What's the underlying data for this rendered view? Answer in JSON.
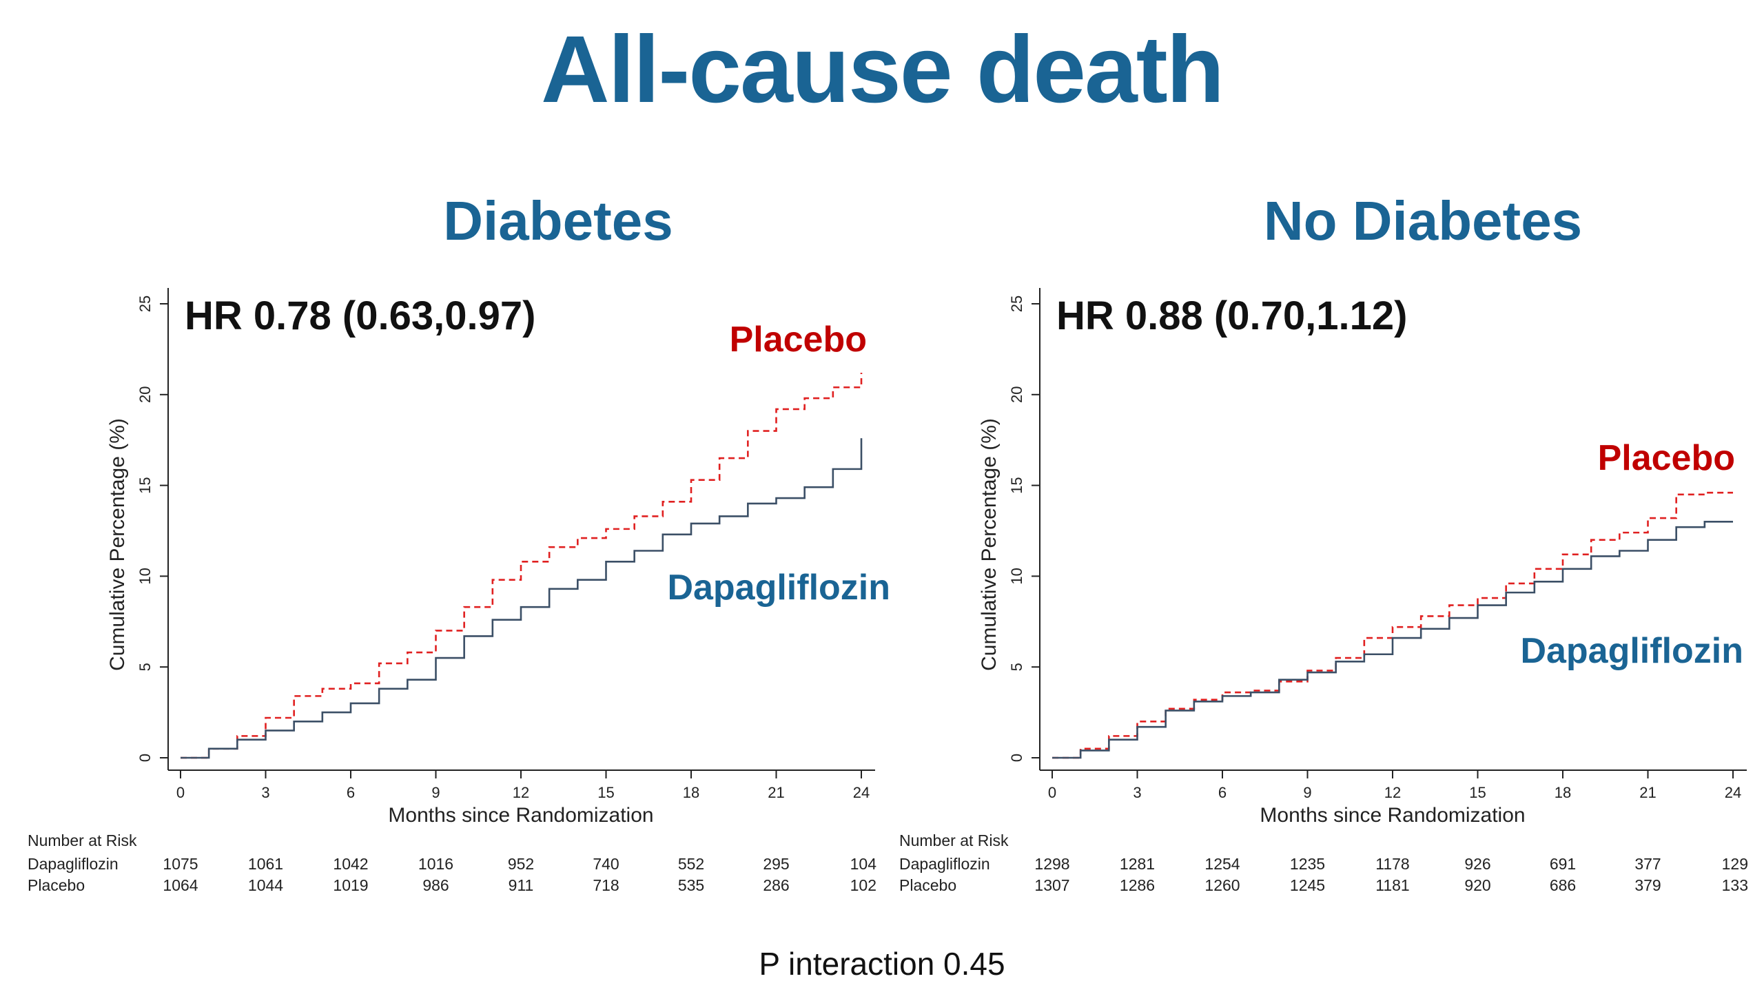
{
  "title": "All-cause death",
  "footnote": "P interaction 0.45",
  "colors": {
    "title": "#1a6494",
    "placebo": "#e02020",
    "dapagliflozin": "#3b4f66",
    "placebo_label": "#c00000",
    "dapagliflozin_label": "#1a6494"
  },
  "chart_data": [
    {
      "type": "line",
      "subtitle": "Diabetes",
      "annotation": "HR 0.78 (0.63,0.97)",
      "xlabel": "Months since Randomization",
      "ylabel": "Cumulative Percentage (%)",
      "xlim": [
        0,
        24
      ],
      "ylim": [
        0,
        25
      ],
      "xticks": [
        0,
        3,
        6,
        9,
        12,
        15,
        18,
        21,
        24
      ],
      "yticks": [
        0,
        5,
        10,
        15,
        20,
        25
      ],
      "grid": false,
      "series": [
        {
          "name": "Placebo",
          "style": "dashed",
          "x": [
            0,
            1,
            2,
            3,
            4,
            5,
            6,
            7,
            8,
            9,
            10,
            11,
            12,
            13,
            14,
            15,
            16,
            17,
            18,
            19,
            20,
            21,
            22,
            23,
            24
          ],
          "y": [
            0,
            0.5,
            1.2,
            2.2,
            3.4,
            3.8,
            4.1,
            5.2,
            5.8,
            7.0,
            8.3,
            9.8,
            10.8,
            11.6,
            12.1,
            12.6,
            13.3,
            14.1,
            15.3,
            16.5,
            18.0,
            19.2,
            19.8,
            20.4,
            21.2
          ]
        },
        {
          "name": "Dapagliflozin",
          "style": "solid",
          "x": [
            0,
            1,
            2,
            3,
            4,
            5,
            6,
            7,
            8,
            9,
            10,
            11,
            12,
            13,
            14,
            15,
            16,
            17,
            18,
            19,
            20,
            21,
            22,
            23,
            24
          ],
          "y": [
            0,
            0.5,
            1.0,
            1.5,
            2.0,
            2.5,
            3.0,
            3.8,
            4.3,
            5.5,
            6.7,
            7.6,
            8.3,
            9.3,
            9.8,
            10.8,
            11.4,
            12.3,
            12.9,
            13.3,
            14.0,
            14.3,
            14.9,
            15.9,
            17.6
          ]
        }
      ],
      "number_at_risk": {
        "header": "Number at Risk",
        "rows": [
          {
            "label": "Dapagliflozin",
            "values": [
              "1075",
              "1061",
              "1042",
              "1016",
              "952",
              "740",
              "552",
              "295",
              "104"
            ]
          },
          {
            "label": "Placebo",
            "values": [
              "1064",
              "1044",
              "1019",
              "986",
              "911",
              "718",
              "535",
              "286",
              "102"
            ]
          }
        ]
      }
    },
    {
      "type": "line",
      "subtitle": "No Diabetes",
      "annotation": "HR 0.88 (0.70,1.12)",
      "xlabel": "Months since Randomization",
      "ylabel": "Cumulative Percentage (%)",
      "xlim": [
        0,
        24
      ],
      "ylim": [
        0,
        25
      ],
      "xticks": [
        0,
        3,
        6,
        9,
        12,
        15,
        18,
        21,
        24
      ],
      "yticks": [
        0,
        5,
        10,
        15,
        20,
        25
      ],
      "grid": false,
      "series": [
        {
          "name": "Placebo",
          "style": "dashed",
          "x": [
            0,
            1,
            2,
            3,
            4,
            5,
            6,
            7,
            8,
            9,
            10,
            11,
            12,
            13,
            14,
            15,
            16,
            17,
            18,
            19,
            20,
            21,
            22,
            23,
            24
          ],
          "y": [
            0,
            0.5,
            1.2,
            2.0,
            2.7,
            3.2,
            3.6,
            3.7,
            4.2,
            4.8,
            5.5,
            6.6,
            7.2,
            7.8,
            8.4,
            8.8,
            9.6,
            10.4,
            11.2,
            12.0,
            12.4,
            13.2,
            14.5,
            14.6,
            14.6
          ]
        },
        {
          "name": "Dapagliflozin",
          "style": "solid",
          "x": [
            0,
            1,
            2,
            3,
            4,
            5,
            6,
            7,
            8,
            9,
            10,
            11,
            12,
            13,
            14,
            15,
            16,
            17,
            18,
            19,
            20,
            21,
            22,
            23,
            24
          ],
          "y": [
            0,
            0.4,
            1.0,
            1.7,
            2.6,
            3.1,
            3.4,
            3.6,
            4.3,
            4.7,
            5.3,
            5.7,
            6.6,
            7.1,
            7.7,
            8.4,
            9.1,
            9.7,
            10.4,
            11.1,
            11.4,
            12.0,
            12.7,
            13.0,
            13.0
          ]
        }
      ],
      "number_at_risk": {
        "header": "Number at Risk",
        "rows": [
          {
            "label": "Dapagliflozin",
            "values": [
              "1298",
              "1281",
              "1254",
              "1235",
              "1178",
              "926",
              "691",
              "377",
              "129"
            ]
          },
          {
            "label": "Placebo",
            "values": [
              "1307",
              "1286",
              "1260",
              "1245",
              "1181",
              "920",
              "686",
              "379",
              "133"
            ]
          }
        ]
      }
    }
  ]
}
